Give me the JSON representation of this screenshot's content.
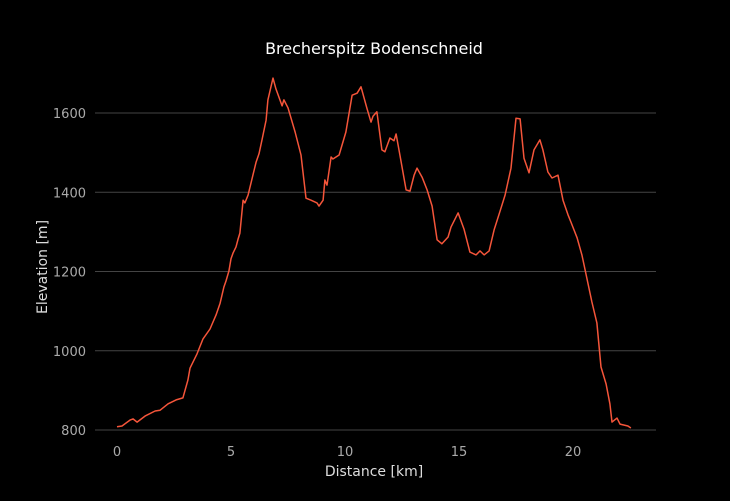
{
  "chart_data": {
    "type": "line",
    "title": "Brecherspitz Bodenschneid",
    "xlabel": "Distance [km]",
    "ylabel": "Elevation [m]",
    "xlim": [
      -0.9,
      23.6
    ],
    "ylim": [
      790,
      1740
    ],
    "xticks": [
      0,
      5,
      10,
      15,
      20
    ],
    "yticks": [
      800,
      1000,
      1200,
      1400,
      1600
    ],
    "grid": "horizontal",
    "colors": {
      "line": "#f5553a",
      "grid": "#444444",
      "background": "#000000"
    },
    "series": [
      {
        "name": "Elevation",
        "x": [
          0,
          0.22,
          0.57,
          0.7,
          0.88,
          1.23,
          1.67,
          1.89,
          2.24,
          2.59,
          2.89,
          3.11,
          3.2,
          3.51,
          3.77,
          4.08,
          4.34,
          4.52,
          4.69,
          4.78,
          4.91,
          5.0,
          5.09,
          5.22,
          5.31,
          5.39,
          5.53,
          5.61,
          5.75,
          5.96,
          6.1,
          6.23,
          6.36,
          6.54,
          6.62,
          6.84,
          6.97,
          7.24,
          7.32,
          7.5,
          7.81,
          8.07,
          8.29,
          8.51,
          8.77,
          8.86,
          9.04,
          9.12,
          9.21,
          9.39,
          9.47,
          9.74,
          10.04,
          10.31,
          10.53,
          10.7,
          10.96,
          11.14,
          11.23,
          11.4,
          11.62,
          11.75,
          11.97,
          12.15,
          12.24,
          12.41,
          12.68,
          12.85,
          13.03,
          13.16,
          13.38,
          13.6,
          13.82,
          14.04,
          14.25,
          14.52,
          14.65,
          14.96,
          15.22,
          15.48,
          15.75,
          15.92,
          16.1,
          16.32,
          16.54,
          16.8,
          17.02,
          17.28,
          17.5,
          17.68,
          17.85,
          18.07,
          18.29,
          18.55,
          18.68,
          18.9,
          19.08,
          19.34,
          19.56,
          19.78,
          19.91,
          20.18,
          20.39,
          20.53,
          20.83,
          21.05,
          21.23,
          21.45,
          21.62,
          21.71,
          21.93,
          22.06,
          22.41,
          22.54
        ],
        "y": [
          808,
          810,
          825,
          828,
          820,
          835,
          848,
          850,
          866,
          876,
          881,
          926,
          956,
          992,
          1030,
          1055,
          1090,
          1120,
          1161,
          1176,
          1201,
          1232,
          1247,
          1262,
          1282,
          1297,
          1380,
          1373,
          1393,
          1443,
          1476,
          1497,
          1532,
          1582,
          1633,
          1688,
          1661,
          1618,
          1633,
          1613,
          1552,
          1494,
          1385,
          1380,
          1373,
          1365,
          1380,
          1431,
          1418,
          1489,
          1484,
          1494,
          1552,
          1645,
          1650,
          1666,
          1612,
          1577,
          1592,
          1603,
          1507,
          1502,
          1537,
          1530,
          1547,
          1494,
          1406,
          1403,
          1443,
          1461,
          1438,
          1406,
          1365,
          1280,
          1270,
          1287,
          1312,
          1348,
          1307,
          1249,
          1242,
          1252,
          1242,
          1252,
          1305,
          1352,
          1393,
          1461,
          1587,
          1585,
          1486,
          1449,
          1507,
          1532,
          1507,
          1451,
          1436,
          1443,
          1380,
          1343,
          1325,
          1285,
          1242,
          1204,
          1123,
          1070,
          959,
          916,
          866,
          820,
          830,
          815,
          810,
          805
        ]
      }
    ]
  }
}
